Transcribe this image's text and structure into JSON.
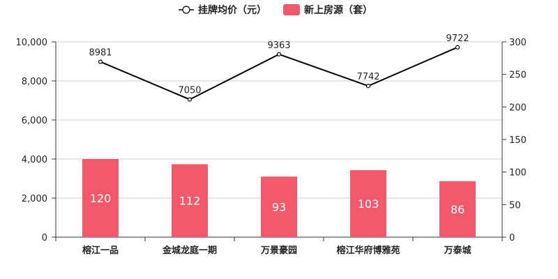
{
  "chart_data": {
    "type": "bar",
    "categories": [
      "榕江一品",
      "金城龙庭一期",
      "万景豪园",
      "榕江华府博雅苑",
      "万泰城"
    ],
    "series": [
      {
        "name": "挂牌均价（元）",
        "type": "line",
        "axis": "left",
        "values": [
          8981,
          7050,
          9363,
          7742,
          9722
        ],
        "color": "#000000"
      },
      {
        "name": "新上房源（套）",
        "type": "bar",
        "axis": "right",
        "values": [
          120,
          112,
          93,
          103,
          86
        ],
        "color": "#f25a6b"
      }
    ],
    "y_left": {
      "min": 0,
      "max": 10000,
      "ticks": [
        "0",
        "2,000",
        "4,000",
        "6,000",
        "8,000",
        "10,000"
      ]
    },
    "y_right": {
      "min": 0,
      "max": 300,
      "ticks": [
        "0",
        "50",
        "100",
        "150",
        "200",
        "250",
        "300"
      ]
    },
    "grid": true,
    "legend_position": "top-center"
  }
}
